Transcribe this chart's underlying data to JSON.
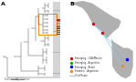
{
  "bg_color": "#ffffff",
  "panel_a_label": "A",
  "panel_b_label": "B",
  "map_land_color": "#b0b0b0",
  "map_ocean_color": "#ffffff",
  "map_line_color": "#87ceeb",
  "legend_items": [
    {
      "label": "Emerging - USA/Mexico",
      "color": "#ff0000"
    },
    {
      "label": "Emerging - Argentina",
      "color": "#00bb00"
    },
    {
      "label": "Emerging - Brazil",
      "color": "#0000ff"
    },
    {
      "label": "Endemic - Argentina",
      "color": "#ff8800"
    },
    {
      "label": "Viral Route",
      "color": "#87ceeb"
    }
  ],
  "highlight_color": "#ff8c00",
  "tree_color": "#555555",
  "sq_colors": [
    "#ff0000",
    "#00bb00",
    "#00bb00",
    "#0000ff",
    "#0000ff",
    "#ff8800",
    "#ff8800",
    "#ff8800",
    "#ff0000"
  ],
  "usa_point": [
    -118,
    34
  ],
  "argentina_point": [
    -58,
    -34
  ],
  "brazil_point": [
    -47,
    -23
  ],
  "ca_point": [
    -99,
    19
  ]
}
